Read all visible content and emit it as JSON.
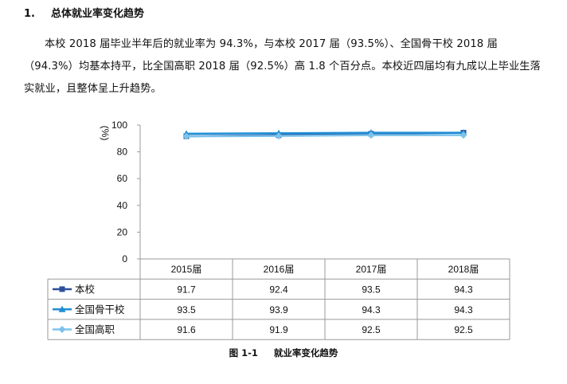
{
  "heading": {
    "number": "1.",
    "title": "总体就业率变化趋势"
  },
  "paragraph": "本校 2018 届毕业半年后的就业率为 94.3%，与本校 2017 届（93.5%）、全国骨干校 2018 届（94.3%）均基本持平，比全国高职 2018 届（92.5%）高 1.8 个百分点。本校近四届均有九成以上毕业生落实就业，且整体呈上升趋势。",
  "caption": {
    "figure": "图 1-1",
    "title": "就业率变化趋势"
  },
  "chart_data": {
    "type": "line",
    "title": "",
    "ylabel": "%",
    "ylim": [
      0,
      100
    ],
    "yticks": [
      0,
      20,
      40,
      60,
      80,
      100
    ],
    "categories": [
      "2015届",
      "2016届",
      "2017届",
      "2018届"
    ],
    "grid": false,
    "legend": "data-table-left",
    "series": [
      {
        "name": "本校",
        "values": [
          91.7,
          92.4,
          93.5,
          94.3
        ],
        "color": "#2e4f9a",
        "marker": "square"
      },
      {
        "name": "全国骨干校",
        "values": [
          93.5,
          93.9,
          94.3,
          94.3
        ],
        "color": "#1f8fd6",
        "marker": "triangle"
      },
      {
        "name": "全国高职",
        "values": [
          91.6,
          91.9,
          92.5,
          92.5
        ],
        "color": "#7cc3ec",
        "marker": "diamond"
      }
    ],
    "data_table": true
  }
}
